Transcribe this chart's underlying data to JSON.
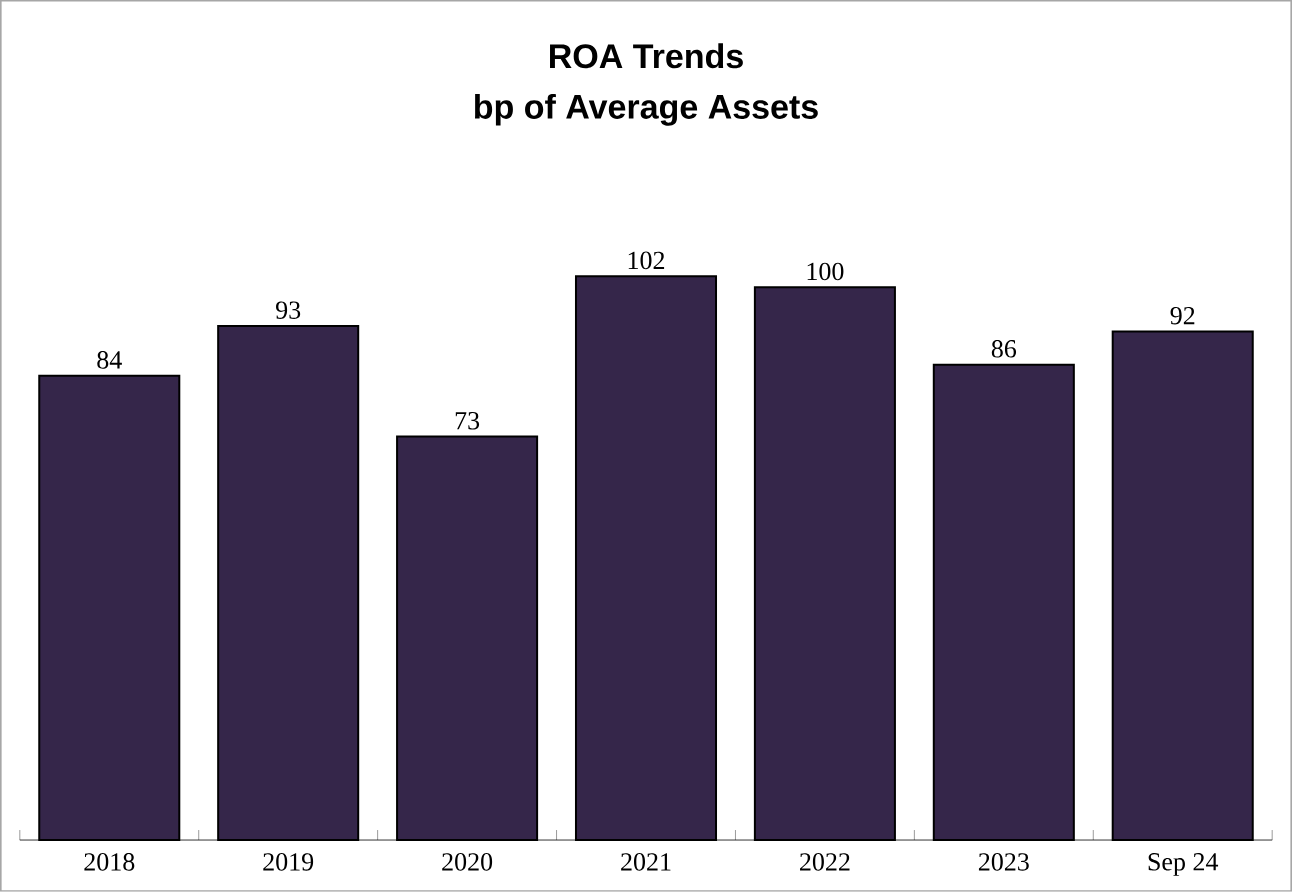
{
  "chart_data": {
    "type": "bar",
    "title": "ROA Trends",
    "subtitle": "bp of Average Assets",
    "categories": [
      "2018",
      "2019",
      "2020",
      "2021",
      "2022",
      "2023",
      "Sep 24"
    ],
    "values": [
      84,
      93,
      73,
      102,
      100,
      86,
      92
    ],
    "color": "#35264a",
    "data_labels": true
  }
}
